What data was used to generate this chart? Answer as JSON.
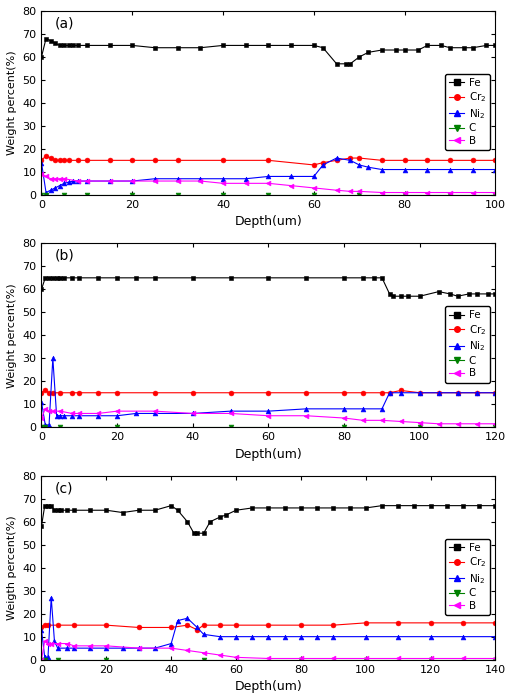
{
  "subplots": [
    {
      "label": "(a)",
      "xlim": [
        0,
        100
      ],
      "ylim": [
        0,
        80
      ],
      "xticks": [
        0,
        20,
        40,
        60,
        80,
        100
      ],
      "ylabel": "Weight percent(%)",
      "Fe": {
        "x": [
          0,
          1,
          2,
          3,
          4,
          5,
          6,
          7,
          8,
          10,
          15,
          20,
          25,
          30,
          35,
          40,
          45,
          50,
          55,
          60,
          62,
          65,
          67,
          68,
          70,
          72,
          75,
          78,
          80,
          83,
          85,
          88,
          90,
          93,
          95,
          98,
          100
        ],
        "y": [
          60,
          68,
          67,
          66,
          65,
          65,
          65,
          65,
          65,
          65,
          65,
          65,
          64,
          64,
          64,
          65,
          65,
          65,
          65,
          65,
          64,
          57,
          57,
          57,
          60,
          62,
          63,
          63,
          63,
          63,
          65,
          65,
          64,
          64,
          64,
          65,
          65
        ]
      },
      "Cr": {
        "x": [
          0,
          1,
          2,
          3,
          4,
          5,
          6,
          8,
          10,
          15,
          20,
          25,
          30,
          40,
          50,
          60,
          62,
          65,
          68,
          70,
          75,
          80,
          85,
          90,
          95,
          100
        ],
        "y": [
          15,
          17,
          16,
          15,
          15,
          15,
          15,
          15,
          15,
          15,
          15,
          15,
          15,
          15,
          15,
          13,
          14,
          15,
          16,
          16,
          15,
          15,
          15,
          15,
          15,
          15
        ]
      },
      "Ni": {
        "x": [
          0,
          1,
          2,
          3,
          4,
          5,
          6,
          7,
          8,
          10,
          15,
          20,
          25,
          30,
          35,
          40,
          45,
          50,
          55,
          60,
          62,
          65,
          68,
          70,
          72,
          75,
          80,
          85,
          90,
          95,
          100
        ],
        "y": [
          14,
          1,
          2,
          3,
          4,
          5,
          5.5,
          6,
          6,
          6,
          6,
          6,
          7,
          7,
          7,
          7,
          7,
          8,
          8,
          8,
          13,
          16,
          15,
          13,
          12,
          11,
          11,
          11,
          11,
          11,
          11
        ]
      },
      "C": {
        "x": [
          0,
          1,
          5,
          10,
          20,
          30,
          40,
          50,
          60,
          70,
          80,
          90,
          100
        ],
        "y": [
          0,
          0,
          0,
          0,
          0,
          0,
          0,
          0,
          0,
          0,
          0,
          0,
          0
        ]
      },
      "B": {
        "x": [
          0,
          1,
          2,
          3,
          4,
          5,
          8,
          10,
          15,
          20,
          25,
          30,
          35,
          40,
          45,
          50,
          55,
          60,
          65,
          68,
          70,
          75,
          80,
          85,
          90,
          95,
          100
        ],
        "y": [
          9,
          8,
          7,
          7,
          7,
          7,
          6,
          6,
          6,
          6,
          6,
          6,
          6,
          5,
          5,
          5,
          4,
          3,
          2,
          1.5,
          1.5,
          1,
          1,
          1,
          1,
          1,
          1
        ]
      }
    },
    {
      "label": "(b)",
      "xlim": [
        0,
        120
      ],
      "ylim": [
        0,
        80
      ],
      "xticks": [
        0,
        20,
        40,
        60,
        80,
        100,
        120
      ],
      "ylabel": "Weight percent(%)",
      "Fe": {
        "x": [
          0,
          1,
          2,
          3,
          4,
          5,
          6,
          8,
          10,
          15,
          20,
          25,
          30,
          40,
          50,
          60,
          70,
          80,
          85,
          88,
          90,
          92,
          93,
          95,
          97,
          100,
          105,
          108,
          110,
          113,
          115,
          118,
          120
        ],
        "y": [
          60,
          65,
          65,
          65,
          65,
          65,
          65,
          65,
          65,
          65,
          65,
          65,
          65,
          65,
          65,
          65,
          65,
          65,
          65,
          65,
          65,
          58,
          57,
          57,
          57,
          57,
          59,
          58,
          57,
          58,
          58,
          58,
          58
        ]
      },
      "Cr": {
        "x": [
          0,
          1,
          2,
          3,
          5,
          8,
          10,
          15,
          20,
          30,
          40,
          50,
          60,
          70,
          80,
          85,
          90,
          92,
          95,
          100,
          105,
          110,
          115,
          120
        ],
        "y": [
          15,
          16,
          15,
          15,
          15,
          15,
          15,
          15,
          15,
          15,
          15,
          15,
          15,
          15,
          15,
          15,
          15,
          15,
          16,
          15,
          15,
          15,
          15,
          15
        ]
      },
      "Ni": {
        "x": [
          0,
          1,
          2,
          3,
          4,
          5,
          6,
          8,
          10,
          15,
          20,
          25,
          30,
          40,
          50,
          60,
          70,
          80,
          85,
          90,
          92,
          95,
          100,
          105,
          110,
          115,
          120
        ],
        "y": [
          11,
          1,
          1,
          30,
          5,
          5,
          5,
          5,
          5,
          5,
          5,
          6,
          6,
          6,
          7,
          7,
          8,
          8,
          8,
          8,
          15,
          15,
          15,
          15,
          15,
          15,
          15
        ]
      },
      "C": {
        "x": [
          0,
          1,
          5,
          20,
          50,
          80,
          100,
          120
        ],
        "y": [
          0,
          0,
          0,
          0,
          0,
          0,
          0,
          0
        ]
      },
      "B": {
        "x": [
          0,
          1,
          2,
          3,
          5,
          8,
          10,
          15,
          20,
          30,
          40,
          50,
          60,
          70,
          80,
          85,
          90,
          95,
          100,
          105,
          110,
          115,
          120
        ],
        "y": [
          4,
          8,
          7,
          7,
          7,
          6,
          6,
          6,
          7,
          7,
          6,
          6,
          5,
          5,
          4,
          3,
          3,
          2.5,
          2,
          1.5,
          1.5,
          1.5,
          1.5
        ]
      }
    },
    {
      "label": "(c)",
      "xlim": [
        0,
        140
      ],
      "ylim": [
        0,
        80
      ],
      "xticks": [
        0,
        20,
        40,
        60,
        80,
        100,
        120,
        140
      ],
      "ylabel": "Weigth percent(%)",
      "Fe": {
        "x": [
          0,
          1,
          2,
          3,
          4,
          5,
          6,
          8,
          10,
          15,
          20,
          25,
          30,
          35,
          40,
          42,
          45,
          47,
          48,
          50,
          52,
          55,
          57,
          60,
          65,
          70,
          75,
          80,
          85,
          90,
          95,
          100,
          105,
          110,
          115,
          120,
          125,
          130,
          135,
          140
        ],
        "y": [
          58,
          67,
          67,
          67,
          65,
          65,
          65,
          65,
          65,
          65,
          65,
          64,
          65,
          65,
          67,
          65,
          60,
          55,
          55,
          55,
          60,
          62,
          63,
          65,
          66,
          66,
          66,
          66,
          66,
          66,
          66,
          66,
          67,
          67,
          67,
          67,
          67,
          67,
          67,
          67
        ]
      },
      "Cr": {
        "x": [
          0,
          1,
          2,
          5,
          10,
          20,
          30,
          40,
          45,
          48,
          50,
          55,
          60,
          70,
          80,
          90,
          100,
          110,
          120,
          130,
          140
        ],
        "y": [
          14,
          15,
          15,
          15,
          15,
          15,
          14,
          14,
          15,
          13,
          15,
          15,
          15,
          15,
          15,
          15,
          16,
          16,
          16,
          16,
          16
        ]
      },
      "Ni": {
        "x": [
          0,
          1,
          2,
          3,
          4,
          5,
          8,
          10,
          15,
          20,
          25,
          30,
          35,
          40,
          42,
          45,
          48,
          50,
          55,
          60,
          65,
          70,
          75,
          80,
          85,
          90,
          100,
          110,
          120,
          130,
          140
        ],
        "y": [
          13,
          1,
          1,
          27,
          8,
          5,
          5,
          5,
          5,
          5,
          5,
          5,
          5,
          7,
          17,
          18,
          14,
          11,
          10,
          10,
          10,
          10,
          10,
          10,
          10,
          10,
          10,
          10,
          10,
          10,
          10
        ]
      },
      "C": {
        "x": [
          0,
          1,
          5,
          20,
          50,
          80,
          100,
          120,
          140
        ],
        "y": [
          0,
          0,
          0,
          0,
          0,
          0,
          0,
          0,
          0
        ]
      },
      "B": {
        "x": [
          0,
          1,
          2,
          3,
          5,
          8,
          10,
          15,
          20,
          30,
          40,
          45,
          50,
          55,
          60,
          70,
          80,
          90,
          100,
          110,
          120,
          130,
          140
        ],
        "y": [
          0,
          8,
          7,
          7,
          7,
          7,
          6,
          6,
          6,
          5,
          5,
          4,
          3,
          2,
          1,
          0.5,
          0.5,
          0.5,
          0.5,
          0.5,
          0.5,
          0.5,
          0.5
        ]
      }
    }
  ],
  "colors": {
    "Fe": "#000000",
    "Cr": "#ff0000",
    "Ni": "#0000ff",
    "C": "#008000",
    "B": "#ff00ff"
  },
  "markers": {
    "Fe": "s",
    "Cr": "o",
    "Ni": "^",
    "C": "v",
    "B": "<"
  },
  "xlabel": "Depth(um)",
  "legend_labels": {
    "Fe": "Fe",
    "Cr": "Cr$_2$",
    "Ni": "Ni$_2$",
    "C": "C",
    "B": "B"
  },
  "figsize": [
    5.13,
    7.0
  ],
  "dpi": 100
}
